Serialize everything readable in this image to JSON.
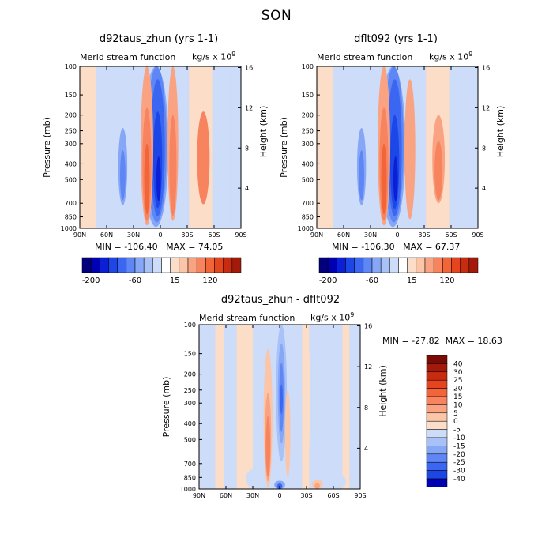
{
  "figure_title": "SON",
  "ui": {
    "subtitle_left": "Merid stream function",
    "units_main": "kg/s x 10",
    "units_exp": "9",
    "ylabel_left": "Pressure (mb)",
    "ylabel_right": "Height (km)",
    "min_label": "MIN =",
    "max_label": "MAX ="
  },
  "colors": {
    "neg": [
      "#02007a",
      "#0000b3",
      "#0b1fd6",
      "#1c46e6",
      "#3a66f2",
      "#5e86f5",
      "#86a6f6",
      "#a8c2f8",
      "#cddcf8"
    ],
    "pos": [
      "#fbddc8",
      "#fbc6a8",
      "#f9a383",
      "#f7845f",
      "#f16539",
      "#e6441f",
      "#c72c10",
      "#a3190a",
      "#7a0a04"
    ]
  },
  "chart_data": [
    {
      "type": "contour",
      "title": "d92taus_zhun (yrs 1-1)",
      "x_ticks": [
        "90N",
        "60N",
        "30N",
        "0",
        "30S",
        "60S",
        "90S"
      ],
      "y_ticks_pressure": [
        100,
        150,
        200,
        250,
        300,
        400,
        500,
        700,
        850,
        1000
      ],
      "y_ticks_height": [
        4,
        8,
        12,
        16
      ],
      "min": "-106.40",
      "max": "74.05",
      "colorbar_labels": [
        "-200",
        "-60",
        "15",
        "120"
      ],
      "cells": [
        {
          "lat": -48,
          "p": 450,
          "rlat": 7,
          "rp": 260,
          "value": 30
        },
        {
          "lat": -48,
          "p": 480,
          "rlat": 4.5,
          "rp": 200,
          "value": 45
        },
        {
          "lat": 5,
          "p": 520,
          "rlat": 14,
          "rp": 460,
          "value": -20
        },
        {
          "lat": 4,
          "p": 500,
          "rlat": 11,
          "rp": 420,
          "value": -40
        },
        {
          "lat": 3,
          "p": 480,
          "rlat": 8,
          "rp": 360,
          "value": -60
        },
        {
          "lat": 3,
          "p": 470,
          "rlat": 5,
          "rp": 280,
          "value": -80
        },
        {
          "lat": 2,
          "p": 520,
          "rlat": 2.5,
          "rp": 160,
          "value": -100
        },
        {
          "lat": -14,
          "p": 500,
          "rlat": 6,
          "rp": 400,
          "value": 20
        },
        {
          "lat": -14,
          "p": 520,
          "rlat": 4,
          "rp": 320,
          "value": 40
        },
        {
          "lat": 15,
          "p": 520,
          "rlat": 7,
          "rp": 440,
          "value": 25
        },
        {
          "lat": 15,
          "p": 540,
          "rlat": 5,
          "rp": 360,
          "value": 45
        },
        {
          "lat": 15,
          "p": 560,
          "rlat": 3,
          "rp": 260,
          "value": 65
        },
        {
          "lat": 42,
          "p": 480,
          "rlat": 5,
          "rp": 240,
          "value": -15
        },
        {
          "lat": 42,
          "p": 500,
          "rlat": 3,
          "rp": 170,
          "value": -30
        }
      ]
    },
    {
      "type": "contour",
      "title": "dflt092 (yrs 1-1)",
      "x_ticks": [
        "90N",
        "60N",
        "30N",
        "0",
        "30S",
        "60S",
        "90S"
      ],
      "y_ticks_pressure": [
        100,
        150,
        200,
        250,
        300,
        400,
        500,
        700,
        850,
        1000
      ],
      "y_ticks_height": [
        4,
        8,
        12,
        16
      ],
      "min": "-106.30",
      "max": "67.37",
      "colorbar_labels": [
        "-200",
        "-60",
        "15",
        "120"
      ],
      "cells": [
        {
          "lat": -46,
          "p": 450,
          "rlat": 7,
          "rp": 250,
          "value": 25
        },
        {
          "lat": -46,
          "p": 480,
          "rlat": 4.5,
          "rp": 190,
          "value": 40
        },
        {
          "lat": 5,
          "p": 520,
          "rlat": 14,
          "rp": 460,
          "value": -20
        },
        {
          "lat": 4,
          "p": 500,
          "rlat": 11,
          "rp": 420,
          "value": -40
        },
        {
          "lat": 3,
          "p": 480,
          "rlat": 8,
          "rp": 360,
          "value": -60
        },
        {
          "lat": 3,
          "p": 480,
          "rlat": 5,
          "rp": 280,
          "value": -80
        },
        {
          "lat": 2,
          "p": 520,
          "rlat": 2.5,
          "rp": 160,
          "value": -100
        },
        {
          "lat": -14,
          "p": 500,
          "rlat": 6,
          "rp": 380,
          "value": 20
        },
        {
          "lat": 15,
          "p": 520,
          "rlat": 7,
          "rp": 440,
          "value": 25
        },
        {
          "lat": 15,
          "p": 540,
          "rlat": 5,
          "rp": 360,
          "value": 45
        },
        {
          "lat": 15,
          "p": 560,
          "rlat": 3,
          "rp": 260,
          "value": 60
        },
        {
          "lat": 40,
          "p": 480,
          "rlat": 5,
          "rp": 240,
          "value": -15
        },
        {
          "lat": 40,
          "p": 500,
          "rlat": 3,
          "rp": 170,
          "value": -30
        }
      ]
    },
    {
      "type": "contour",
      "title": "d92taus_zhun - dflt092",
      "x_ticks": [
        "90N",
        "60N",
        "30N",
        "0",
        "30S",
        "60S",
        "90S"
      ],
      "y_ticks_pressure": [
        100,
        150,
        200,
        250,
        300,
        400,
        500,
        700,
        850,
        1000
      ],
      "y_ticks_height": [
        4,
        8,
        12,
        16
      ],
      "min": "-27.82",
      "max": "18.63",
      "colorbar_levels": [
        "40",
        "30",
        "25",
        "20",
        "15",
        "10",
        "5",
        "0",
        "-5",
        "-10",
        "-15",
        "-20",
        "-25",
        "-30",
        "-40"
      ],
      "cells": [
        {
          "lat": -30,
          "p": 400,
          "rlat": 4,
          "rp": 400,
          "value": 3
        },
        {
          "lat": -2,
          "p": 450,
          "rlat": 8,
          "rp": 420,
          "value": -4
        },
        {
          "lat": -2,
          "p": 380,
          "rlat": 6,
          "rp": 300,
          "value": -8
        },
        {
          "lat": -2,
          "p": 330,
          "rlat": 4,
          "rp": 200,
          "value": -13
        },
        {
          "lat": -2,
          "p": 310,
          "rlat": 2.5,
          "rp": 140,
          "value": -18
        },
        {
          "lat": -2,
          "p": 290,
          "rlat": 1.5,
          "rp": 60,
          "value": -24
        },
        {
          "lat": 13,
          "p": 560,
          "rlat": 5,
          "rp": 420,
          "value": 6
        },
        {
          "lat": 13,
          "p": 580,
          "rlat": 3.5,
          "rp": 320,
          "value": 11
        },
        {
          "lat": 13,
          "p": 600,
          "rlat": 2.5,
          "rp": 240,
          "value": 16
        },
        {
          "lat": -9,
          "p": 550,
          "rlat": 3,
          "rp": 300,
          "value": 6
        },
        {
          "lat": 0,
          "p": 960,
          "rlat": 6,
          "rp": 70,
          "value": -10
        },
        {
          "lat": 0,
          "p": 970,
          "rlat": 3,
          "rp": 45,
          "value": -22
        },
        {
          "lat": -42,
          "p": 950,
          "rlat": 6,
          "rp": 70,
          "value": 8
        },
        {
          "lat": -42,
          "p": 960,
          "rlat": 3,
          "rp": 40,
          "value": 14
        },
        {
          "lat": 27,
          "p": 900,
          "rlat": 11,
          "rp": 150,
          "value": -4
        },
        {
          "lat": -66,
          "p": 920,
          "rlat": 8,
          "rp": 110,
          "value": -4
        }
      ]
    }
  ]
}
